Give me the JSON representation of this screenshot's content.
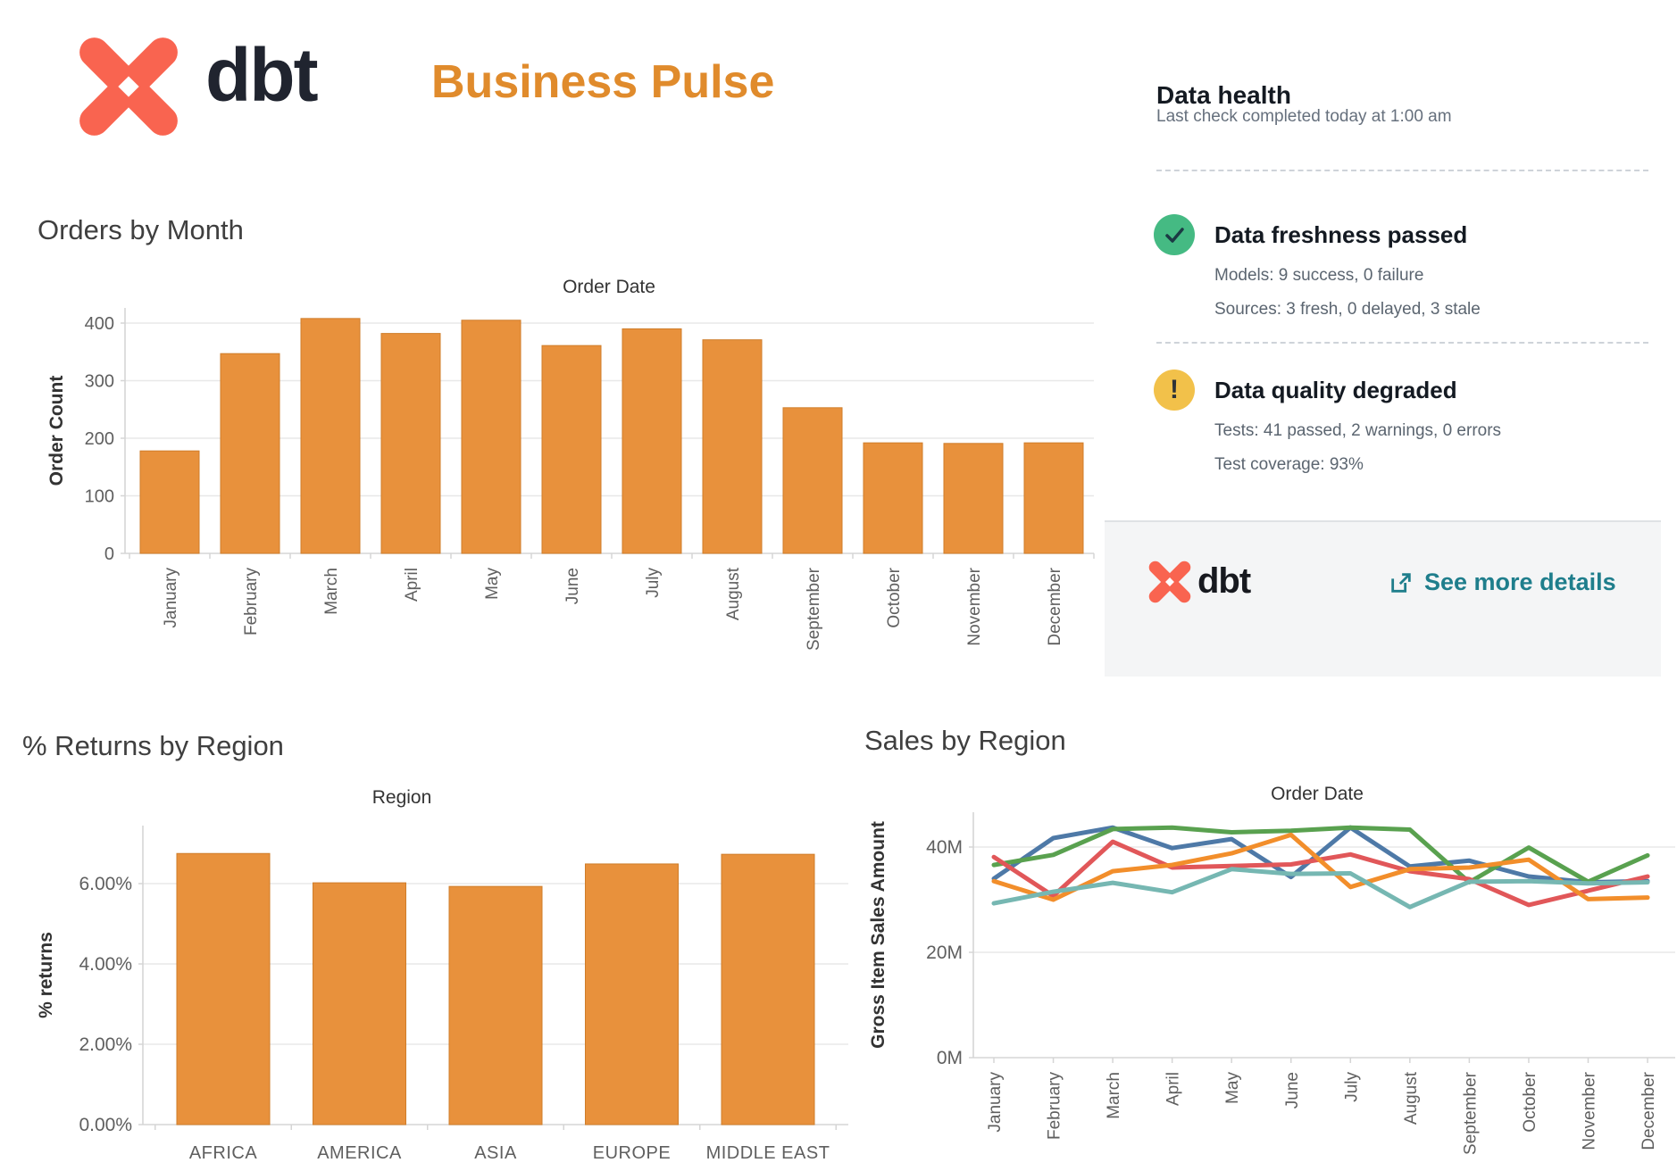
{
  "header": {
    "logo_text": "dbt",
    "title": "Business Pulse",
    "logo_color": "#f96450",
    "wordmark_color": "#20242f",
    "title_color": "#e08b2c"
  },
  "data_health": {
    "title": "Data health",
    "subtitle": "Last check completed today at 1:00 am",
    "checks": [
      {
        "title": "Data freshness passed",
        "icon": "check",
        "icon_color": "#45ba83",
        "lines": [
          "Models: 9 success, 0 failure",
          "Sources: 3 fresh, 0 delayed, 3 stale"
        ]
      },
      {
        "title": "Data quality degraded",
        "icon": "exclamation",
        "icon_color": "#f2c14a",
        "exclamation_glyph": "!",
        "lines": [
          "Tests: 41 passed, 2 warnings, 0 errors",
          "Test coverage: 93%"
        ]
      }
    ],
    "footer": {
      "logo_text": "dbt",
      "link_label": "See more details",
      "link_color": "#1f7e8c"
    }
  },
  "chart_data": [
    {
      "id": "orders_by_month",
      "type": "bar",
      "title": "Orders by Month",
      "inner_title": "Order Date",
      "xlabel": "Order Date",
      "ylabel": "Order Count",
      "categories": [
        "January",
        "February",
        "March",
        "April",
        "May",
        "June",
        "July",
        "August",
        "September",
        "October",
        "November",
        "December"
      ],
      "values": [
        178,
        347,
        408,
        382,
        405,
        361,
        390,
        371,
        253,
        192,
        191,
        192
      ],
      "yticks": [
        0,
        100,
        200,
        300,
        400
      ],
      "ylim": [
        0,
        430
      ],
      "ytick_format": "plain",
      "bar_color": "#e8913c",
      "grid": true,
      "legend": "none"
    },
    {
      "id": "returns_by_region",
      "type": "bar",
      "title": "% Returns by Region",
      "inner_title": "Region",
      "xlabel": "Region",
      "ylabel": "% returns",
      "categories": [
        "AFRICA",
        "AMERICA",
        "ASIA",
        "EUROPE",
        "MIDDLE EAST"
      ],
      "values": [
        6.75,
        6.02,
        5.93,
        6.49,
        6.73
      ],
      "yticks": [
        0,
        2,
        4,
        6
      ],
      "ylim": [
        0,
        7.4
      ],
      "ytick_format": "percent2",
      "bar_color": "#e8913c",
      "grid": true,
      "legend": "none"
    },
    {
      "id": "sales_by_region",
      "type": "line",
      "title": "Sales by Region",
      "inner_title": "Order Date",
      "xlabel": "Order Date",
      "ylabel": "Gross Item Sales Amount",
      "categories": [
        "January",
        "February",
        "March",
        "April",
        "May",
        "June",
        "July",
        "August",
        "September",
        "October",
        "November",
        "December"
      ],
      "series": [
        {
          "name": "Blue",
          "color": "#4e79a7",
          "values": [
            34.0,
            41.7,
            43.7,
            39.8,
            41.5,
            34.3,
            43.7,
            36.3,
            37.4,
            34.4,
            33.3,
            33.5
          ]
        },
        {
          "name": "Green",
          "color": "#59a14f",
          "values": [
            36.6,
            38.5,
            43.4,
            43.7,
            42.8,
            43.1,
            43.7,
            43.3,
            33.3,
            39.9,
            33.4,
            38.4
          ]
        },
        {
          "name": "Red",
          "color": "#e15759",
          "values": [
            38.1,
            30.7,
            41.0,
            36.1,
            36.4,
            36.7,
            38.6,
            35.4,
            33.9,
            29.0,
            31.7,
            34.4
          ]
        },
        {
          "name": "Orange",
          "color": "#f28e2b",
          "values": [
            33.5,
            30.0,
            35.4,
            36.6,
            38.8,
            42.3,
            32.4,
            35.8,
            36.1,
            37.6,
            30.1,
            30.4
          ]
        },
        {
          "name": "Teal",
          "color": "#76b7b2",
          "values": [
            29.3,
            31.5,
            33.2,
            31.4,
            35.8,
            34.9,
            35.0,
            28.6,
            33.4,
            33.5,
            33.1,
            33.3
          ]
        }
      ],
      "yticks": [
        0,
        20,
        40
      ],
      "ylim": [
        0,
        47
      ],
      "ytick_format": "M",
      "grid": true,
      "legend": "none"
    }
  ],
  "chart_style": {
    "grid_color": "#e8e8e8",
    "axis_color": "#d5d5d5",
    "tick_text_color": "#5f5f5f",
    "axis_title_color": "#333333",
    "header_color": "#333333"
  }
}
